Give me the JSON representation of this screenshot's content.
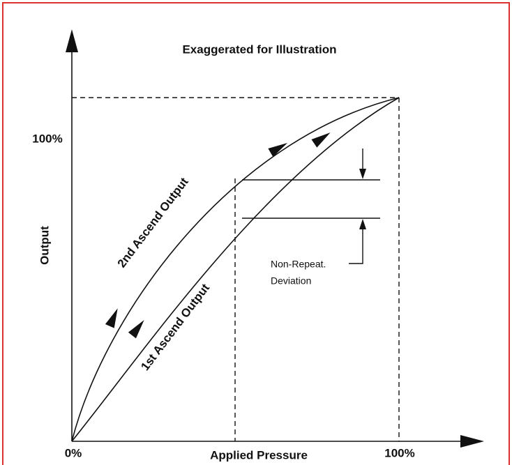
{
  "title": "Exaggerated for Illustration",
  "axes": {
    "y_label": "Output",
    "y_max_label": "100%",
    "x_label": "Applied Pressure",
    "x_min_label": "0%",
    "x_max_label": "100%"
  },
  "curves": [
    {
      "label": "2nd Ascend Output"
    },
    {
      "label": "1st Ascend Output"
    }
  ],
  "annotation": {
    "lines": [
      "Non-Repeat.",
      "Deviation"
    ]
  }
}
